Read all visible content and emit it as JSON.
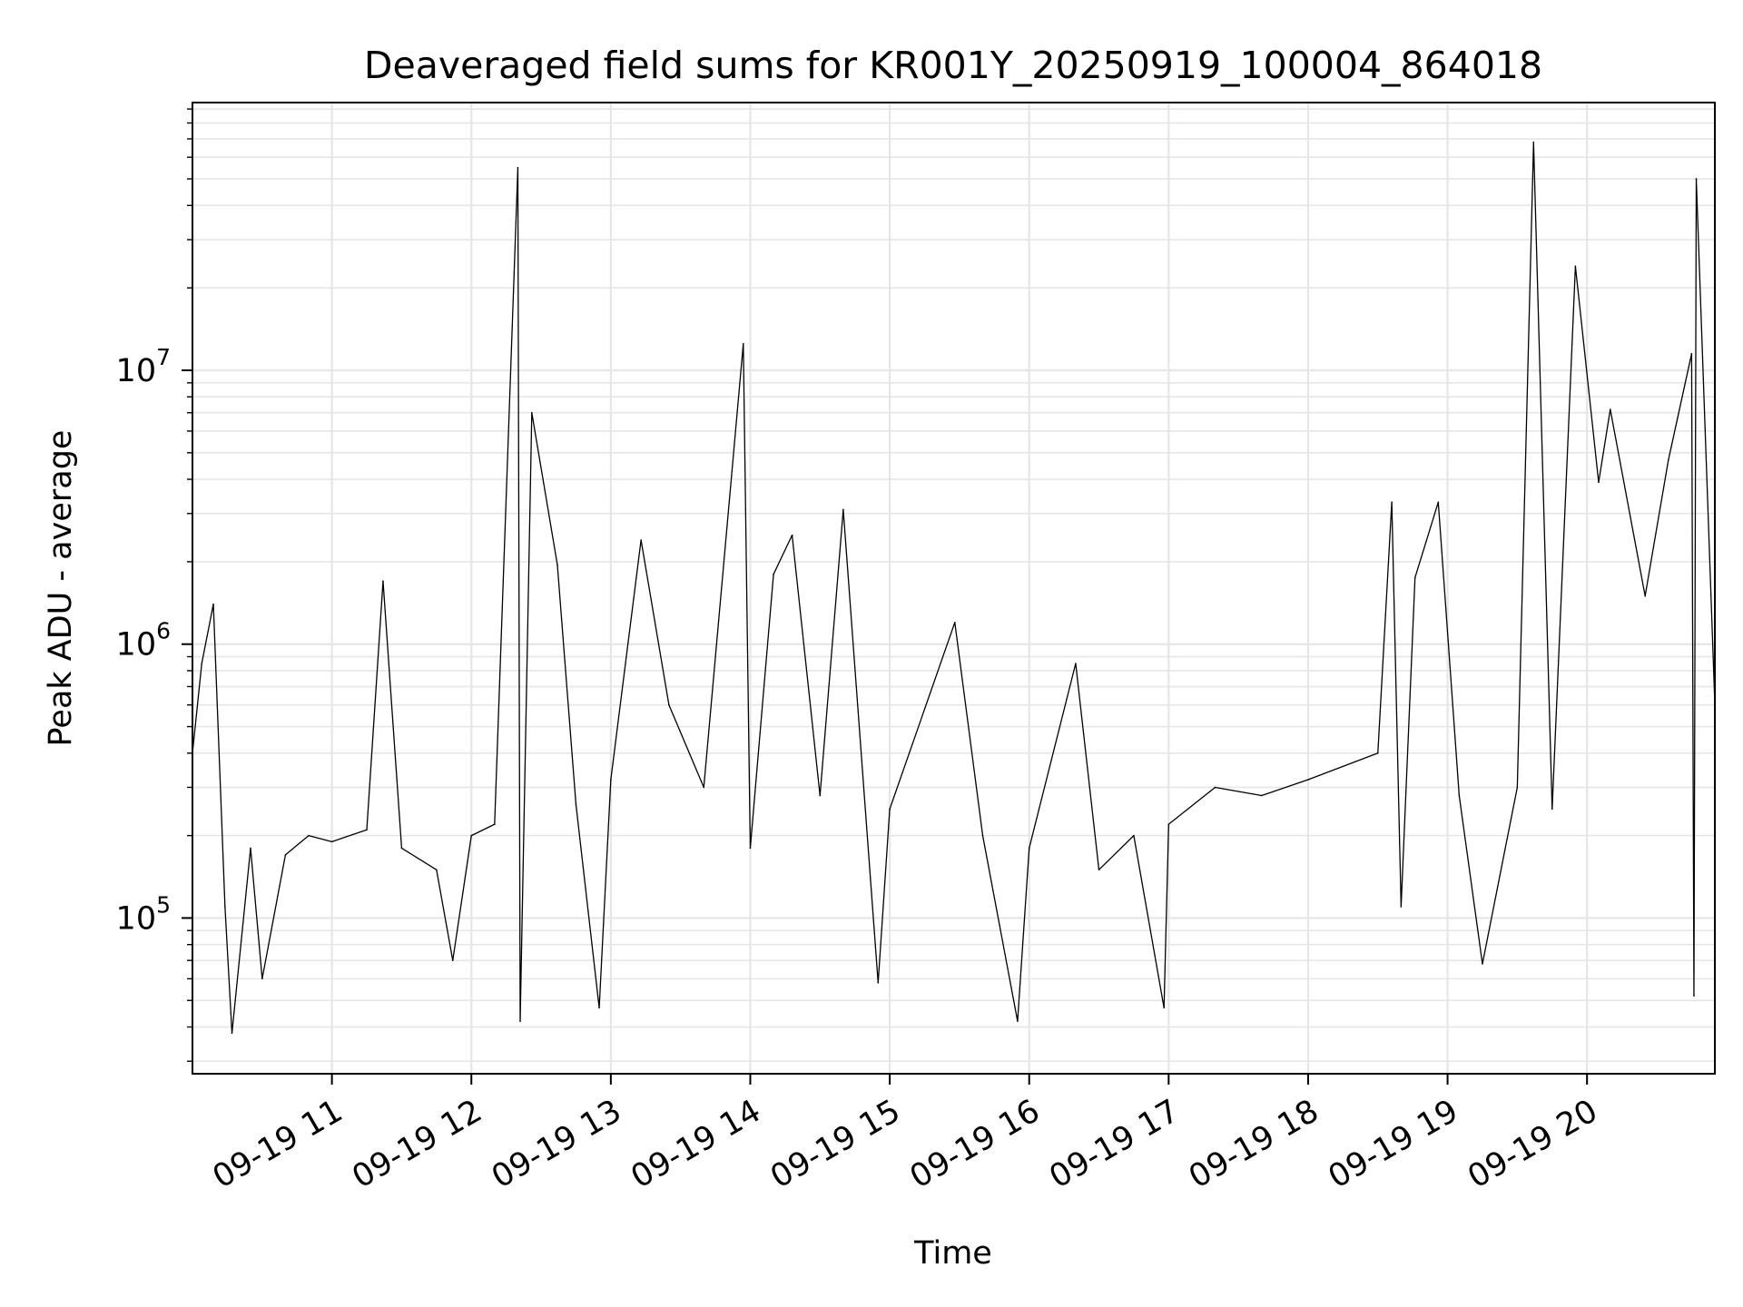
{
  "chart_data": {
    "type": "line",
    "title": "Deaveraged field sums for KR001Y_20250919_100004_864018",
    "xlabel": "Time",
    "ylabel": "Peak ADU - average",
    "yscale": "log",
    "ylim": [
      27000,
      95000000
    ],
    "xlim": [
      "2025-09-19 10:00",
      "2025-09-19 20:55"
    ],
    "grid": true,
    "line_color": "#000000",
    "x_ticks": [
      {
        "x": "2025-09-19 11:00",
        "label": "09-19 11"
      },
      {
        "x": "2025-09-19 12:00",
        "label": "09-19 12"
      },
      {
        "x": "2025-09-19 13:00",
        "label": "09-19 13"
      },
      {
        "x": "2025-09-19 14:00",
        "label": "09-19 14"
      },
      {
        "x": "2025-09-19 15:00",
        "label": "09-19 15"
      },
      {
        "x": "2025-09-19 16:00",
        "label": "09-19 16"
      },
      {
        "x": "2025-09-19 17:00",
        "label": "09-19 17"
      },
      {
        "x": "2025-09-19 18:00",
        "label": "09-19 18"
      },
      {
        "x": "2025-09-19 19:00",
        "label": "09-19 19"
      },
      {
        "x": "2025-09-19 20:00",
        "label": "09-19 20"
      }
    ],
    "y_ticks": [
      {
        "value": 100000,
        "base": "10",
        "exp": "5"
      },
      {
        "value": 1000000,
        "base": "10",
        "exp": "6"
      },
      {
        "value": 10000000,
        "base": "10",
        "exp": "7"
      }
    ],
    "series": [
      {
        "points": [
          [
            "2025-09-19 10:00",
            400000
          ],
          [
            "2025-09-19 10:04",
            850000
          ],
          [
            "2025-09-19 10:09",
            1400000
          ],
          [
            "2025-09-19 10:14",
            110000
          ],
          [
            "2025-09-19 10:17",
            38000
          ],
          [
            "2025-09-19 10:25",
            180000
          ],
          [
            "2025-09-19 10:30",
            60000
          ],
          [
            "2025-09-19 10:40",
            170000
          ],
          [
            "2025-09-19 10:50",
            200000
          ],
          [
            "2025-09-19 11:00",
            190000
          ],
          [
            "2025-09-19 11:15",
            210000
          ],
          [
            "2025-09-19 11:22",
            1700000
          ],
          [
            "2025-09-19 11:30",
            180000
          ],
          [
            "2025-09-19 11:45",
            150000
          ],
          [
            "2025-09-19 11:52",
            70000
          ],
          [
            "2025-09-19 12:00",
            200000
          ],
          [
            "2025-09-19 12:10",
            220000
          ],
          [
            "2025-09-19 12:20",
            55000000
          ],
          [
            "2025-09-19 12:21",
            42000
          ],
          [
            "2025-09-19 12:26",
            7000000
          ],
          [
            "2025-09-19 12:37",
            1950000
          ],
          [
            "2025-09-19 12:45",
            260000
          ],
          [
            "2025-09-19 12:55",
            47000
          ],
          [
            "2025-09-19 13:00",
            320000
          ],
          [
            "2025-09-19 13:13",
            2400000
          ],
          [
            "2025-09-19 13:25",
            600000
          ],
          [
            "2025-09-19 13:40",
            300000
          ],
          [
            "2025-09-19 13:57",
            12500000
          ],
          [
            "2025-09-19 14:00",
            180000
          ],
          [
            "2025-09-19 14:10",
            1800000
          ],
          [
            "2025-09-19 14:18",
            2500000
          ],
          [
            "2025-09-19 14:30",
            280000
          ],
          [
            "2025-09-19 14:40",
            3100000
          ],
          [
            "2025-09-19 14:55",
            58000
          ],
          [
            "2025-09-19 15:00",
            250000
          ],
          [
            "2025-09-19 15:28",
            1200000
          ],
          [
            "2025-09-19 15:40",
            200000
          ],
          [
            "2025-09-19 15:55",
            42000
          ],
          [
            "2025-09-19 16:00",
            180000
          ],
          [
            "2025-09-19 16:20",
            850000
          ],
          [
            "2025-09-19 16:30",
            150000
          ],
          [
            "2025-09-19 16:45",
            200000
          ],
          [
            "2025-09-19 16:58",
            47000
          ],
          [
            "2025-09-19 17:00",
            220000
          ],
          [
            "2025-09-19 17:20",
            300000
          ],
          [
            "2025-09-19 17:40",
            280000
          ],
          [
            "2025-09-19 18:00",
            320000
          ],
          [
            "2025-09-19 18:30",
            400000
          ],
          [
            "2025-09-19 18:36",
            3300000
          ],
          [
            "2025-09-19 18:40",
            110000
          ],
          [
            "2025-09-19 18:46",
            1750000
          ],
          [
            "2025-09-19 18:56",
            3300000
          ],
          [
            "2025-09-19 19:05",
            280000
          ],
          [
            "2025-09-19 19:15",
            68000
          ],
          [
            "2025-09-19 19:30",
            300000
          ],
          [
            "2025-09-19 19:37",
            68000000
          ],
          [
            "2025-09-19 19:45",
            250000
          ],
          [
            "2025-09-19 19:55",
            24000000
          ],
          [
            "2025-09-19 20:05",
            3900000
          ],
          [
            "2025-09-19 20:10",
            7200000
          ],
          [
            "2025-09-19 20:25",
            1500000
          ],
          [
            "2025-09-19 20:35",
            4700000
          ],
          [
            "2025-09-19 20:45",
            11500000
          ],
          [
            "2025-09-19 20:46",
            52000
          ],
          [
            "2025-09-19 20:47",
            50000000
          ],
          [
            "2025-09-19 20:55",
            600000
          ]
        ]
      }
    ]
  }
}
